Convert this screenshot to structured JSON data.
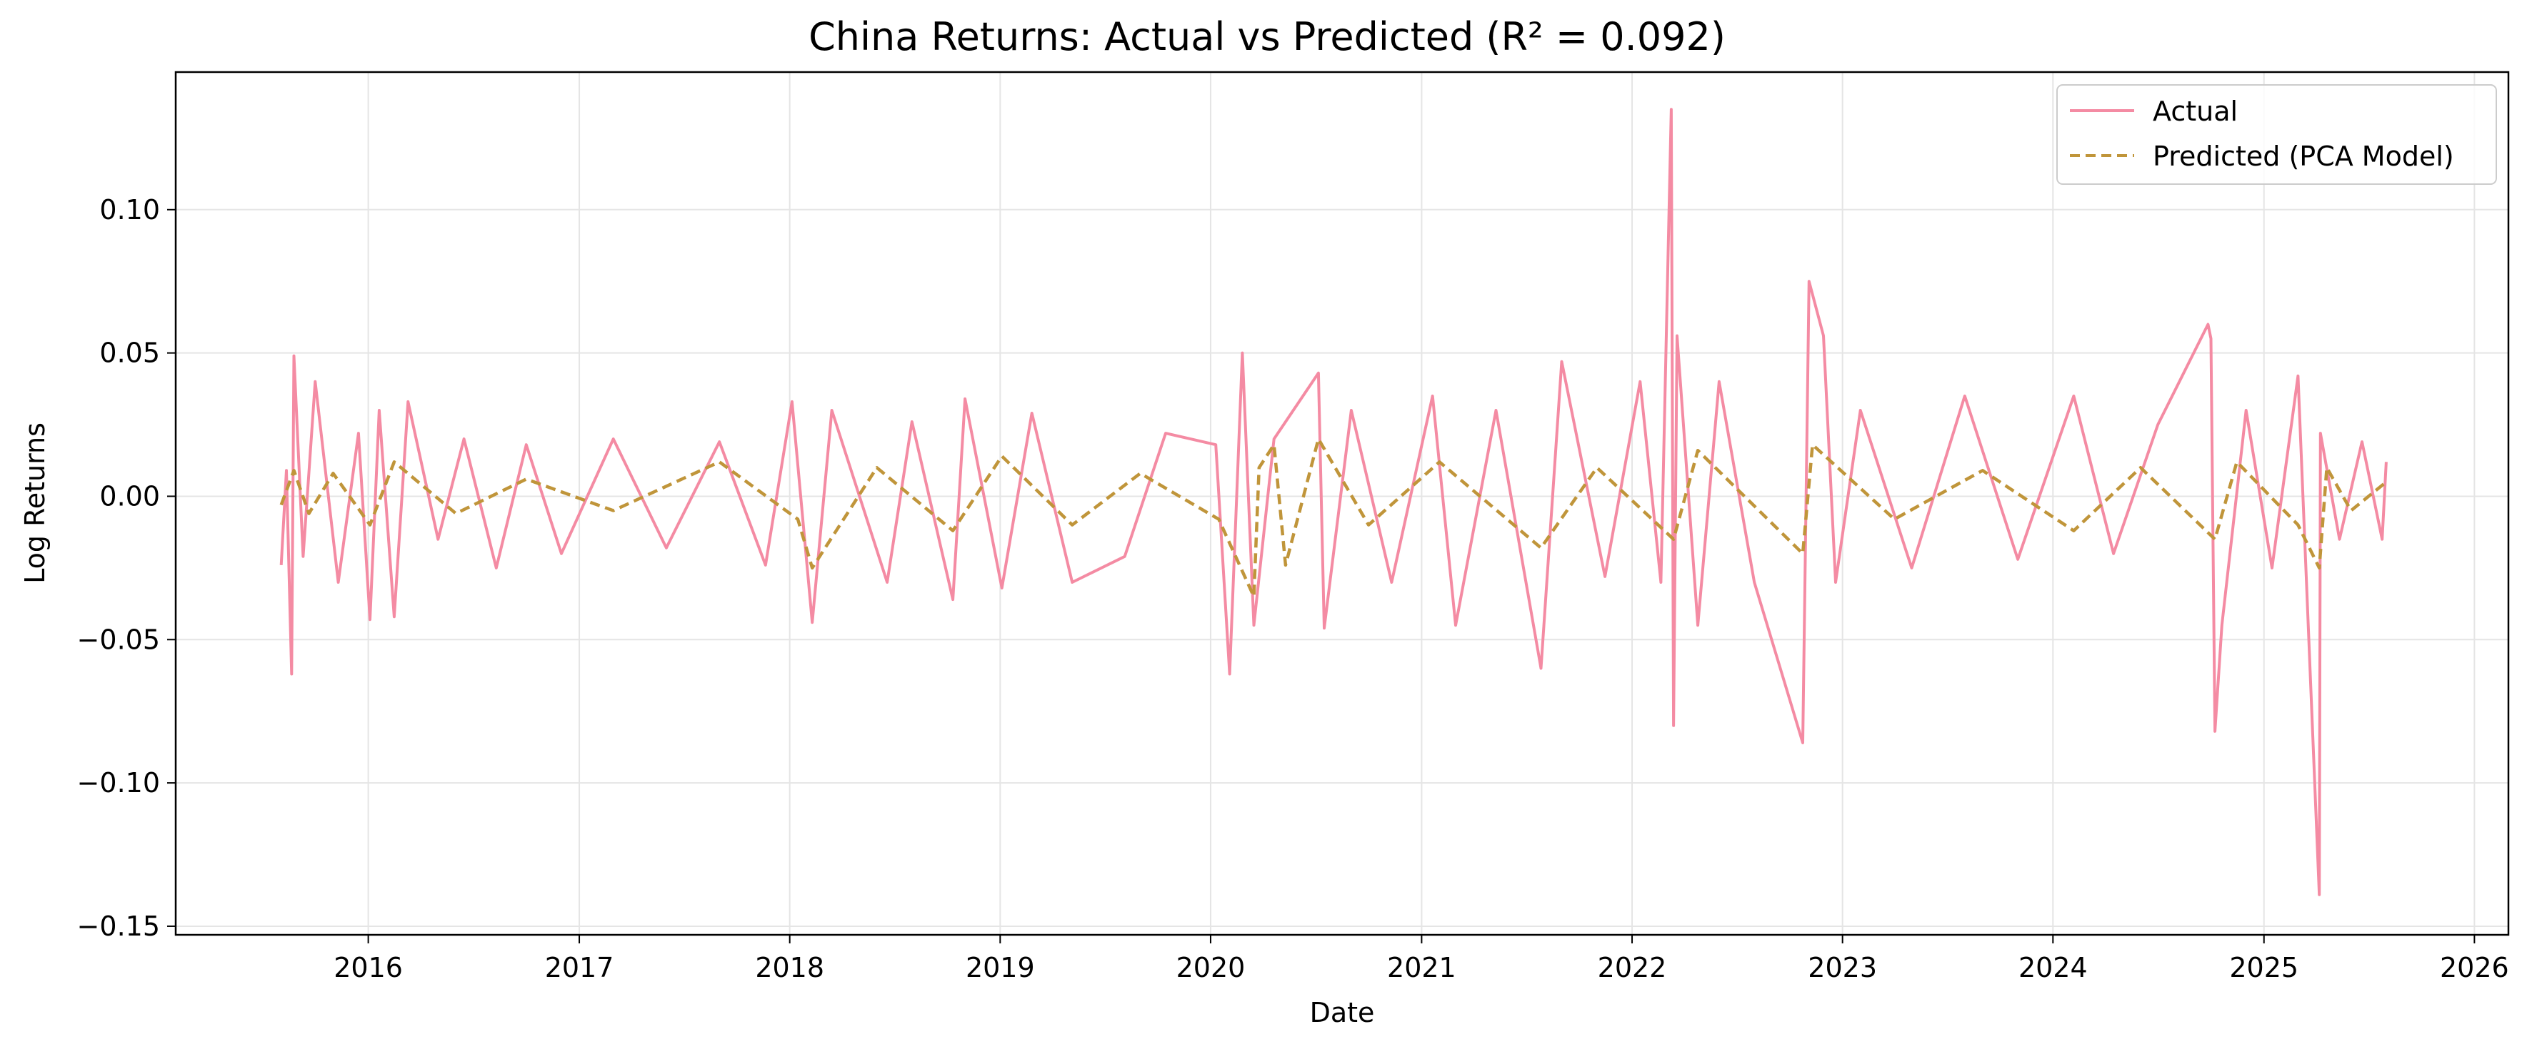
{
  "chart_data": {
    "type": "line",
    "title": "China Returns: Actual vs Predicted (R² = 0.092)",
    "xlabel": "Date",
    "ylabel": "Log Returns",
    "xlim": [
      "2015-02-01",
      "2026-03-01"
    ],
    "ylim": [
      -0.153,
      0.148
    ],
    "x_ticks": [
      "2016-01-01",
      "2017-01-01",
      "2018-01-01",
      "2019-01-01",
      "2020-01-01",
      "2021-01-01",
      "2022-01-01",
      "2023-01-01",
      "2024-01-01",
      "2025-01-01",
      "2026-01-01"
    ],
    "x_tick_labels": [
      "2016",
      "2017",
      "2018",
      "2019",
      "2020",
      "2021",
      "2022",
      "2023",
      "2024",
      "2025",
      "2026"
    ],
    "y_ticks": [
      0.1,
      0.05,
      0.0,
      -0.05,
      -0.1,
      -0.15
    ],
    "y_tick_labels": [
      "0.10",
      "0.05",
      "0.00",
      "−0.05",
      "−0.10",
      "−0.15"
    ],
    "grid": true,
    "legend_position": "top-right",
    "series": [
      {
        "name": "Actual",
        "color": "#f48ba3",
        "style": "solid",
        "points": [
          [
            "2015-08-03",
            -0.024
          ],
          [
            "2015-08-12",
            0.009
          ],
          [
            "2015-08-21",
            -0.062
          ],
          [
            "2015-08-25",
            0.049
          ],
          [
            "2015-09-10",
            -0.021
          ],
          [
            "2015-10-01",
            0.04
          ],
          [
            "2015-11-10",
            -0.03
          ],
          [
            "2015-12-15",
            0.022
          ],
          [
            "2016-01-04",
            -0.043
          ],
          [
            "2016-01-20",
            0.03
          ],
          [
            "2016-02-15",
            -0.042
          ],
          [
            "2016-03-10",
            0.033
          ],
          [
            "2016-05-01",
            -0.015
          ],
          [
            "2016-06-15",
            0.02
          ],
          [
            "2016-08-10",
            -0.025
          ],
          [
            "2016-10-01",
            0.018
          ],
          [
            "2016-12-01",
            -0.02
          ],
          [
            "2017-03-01",
            0.02
          ],
          [
            "2017-06-01",
            -0.018
          ],
          [
            "2017-09-01",
            0.019
          ],
          [
            "2017-11-20",
            -0.024
          ],
          [
            "2018-01-05",
            0.033
          ],
          [
            "2018-02-09",
            -0.044
          ],
          [
            "2018-03-15",
            0.03
          ],
          [
            "2018-06-19",
            -0.03
          ],
          [
            "2018-08-01",
            0.026
          ],
          [
            "2018-10-11",
            -0.036
          ],
          [
            "2018-11-01",
            0.034
          ],
          [
            "2019-01-04",
            -0.032
          ],
          [
            "2019-02-25",
            0.029
          ],
          [
            "2019-05-06",
            -0.03
          ],
          [
            "2019-08-05",
            -0.021
          ],
          [
            "2019-10-15",
            0.022
          ],
          [
            "2020-01-10",
            0.018
          ],
          [
            "2020-02-03",
            -0.062
          ],
          [
            "2020-02-25",
            0.05
          ],
          [
            "2020-03-16",
            -0.045
          ],
          [
            "2020-04-20",
            0.02
          ],
          [
            "2020-07-06",
            0.043
          ],
          [
            "2020-07-16",
            -0.046
          ],
          [
            "2020-09-01",
            0.03
          ],
          [
            "2020-11-10",
            -0.03
          ],
          [
            "2021-01-20",
            0.035
          ],
          [
            "2021-03-01",
            -0.045
          ],
          [
            "2021-05-10",
            0.03
          ],
          [
            "2021-07-27",
            -0.06
          ],
          [
            "2021-09-01",
            0.047
          ],
          [
            "2021-11-15",
            -0.028
          ],
          [
            "2022-01-15",
            0.04
          ],
          [
            "2022-02-20",
            -0.03
          ],
          [
            "2022-03-10",
            0.135
          ],
          [
            "2022-03-14",
            -0.08
          ],
          [
            "2022-03-20",
            0.056
          ],
          [
            "2022-04-25",
            -0.045
          ],
          [
            "2022-06-01",
            0.04
          ],
          [
            "2022-08-01",
            -0.03
          ],
          [
            "2022-10-24",
            -0.086
          ],
          [
            "2022-11-04",
            0.075
          ],
          [
            "2022-11-29",
            0.056
          ],
          [
            "2022-12-20",
            -0.03
          ],
          [
            "2023-02-01",
            0.03
          ],
          [
            "2023-05-01",
            -0.025
          ],
          [
            "2023-08-01",
            0.035
          ],
          [
            "2023-11-01",
            -0.022
          ],
          [
            "2024-02-06",
            0.035
          ],
          [
            "2024-04-15",
            -0.02
          ],
          [
            "2024-07-01",
            0.025
          ],
          [
            "2024-09-26",
            0.06
          ],
          [
            "2024-10-01",
            0.055
          ],
          [
            "2024-10-08",
            -0.082
          ],
          [
            "2024-10-20",
            -0.045
          ],
          [
            "2024-12-01",
            0.03
          ],
          [
            "2025-01-15",
            -0.025
          ],
          [
            "2025-03-01",
            0.042
          ],
          [
            "2025-04-07",
            -0.139
          ],
          [
            "2025-04-09",
            0.022
          ],
          [
            "2025-05-12",
            -0.015
          ],
          [
            "2025-06-20",
            0.019
          ],
          [
            "2025-07-25",
            -0.015
          ],
          [
            "2025-08-01",
            0.012
          ]
        ]
      },
      {
        "name": "Predicted (PCA Model)",
        "color": "#c0953a",
        "style": "dashed",
        "points": [
          [
            "2015-08-03",
            -0.003
          ],
          [
            "2015-08-25",
            0.009
          ],
          [
            "2015-09-20",
            -0.006
          ],
          [
            "2015-11-01",
            0.008
          ],
          [
            "2016-01-04",
            -0.01
          ],
          [
            "2016-02-15",
            0.012
          ],
          [
            "2016-06-01",
            -0.006
          ],
          [
            "2016-10-01",
            0.006
          ],
          [
            "2017-03-01",
            -0.005
          ],
          [
            "2017-09-01",
            0.012
          ],
          [
            "2018-01-15",
            -0.008
          ],
          [
            "2018-02-09",
            -0.025
          ],
          [
            "2018-06-01",
            0.01
          ],
          [
            "2018-10-11",
            -0.012
          ],
          [
            "2019-01-04",
            0.014
          ],
          [
            "2019-05-06",
            -0.01
          ],
          [
            "2019-09-01",
            0.008
          ],
          [
            "2020-01-15",
            -0.008
          ],
          [
            "2020-03-16",
            -0.035
          ],
          [
            "2020-03-25",
            0.01
          ],
          [
            "2020-04-20",
            0.018
          ],
          [
            "2020-05-10",
            -0.024
          ],
          [
            "2020-07-06",
            0.02
          ],
          [
            "2020-10-01",
            -0.01
          ],
          [
            "2021-02-01",
            0.012
          ],
          [
            "2021-07-27",
            -0.018
          ],
          [
            "2021-11-01",
            0.01
          ],
          [
            "2022-03-14",
            -0.015
          ],
          [
            "2022-04-25",
            0.016
          ],
          [
            "2022-10-24",
            -0.02
          ],
          [
            "2022-11-10",
            0.018
          ],
          [
            "2023-04-01",
            -0.008
          ],
          [
            "2023-09-01",
            0.009
          ],
          [
            "2024-02-06",
            -0.012
          ],
          [
            "2024-06-01",
            0.01
          ],
          [
            "2024-10-08",
            -0.015
          ],
          [
            "2024-11-15",
            0.012
          ],
          [
            "2025-03-01",
            -0.01
          ],
          [
            "2025-04-07",
            -0.025
          ],
          [
            "2025-04-20",
            0.01
          ],
          [
            "2025-06-01",
            -0.005
          ],
          [
            "2025-08-01",
            0.005
          ]
        ]
      }
    ]
  }
}
